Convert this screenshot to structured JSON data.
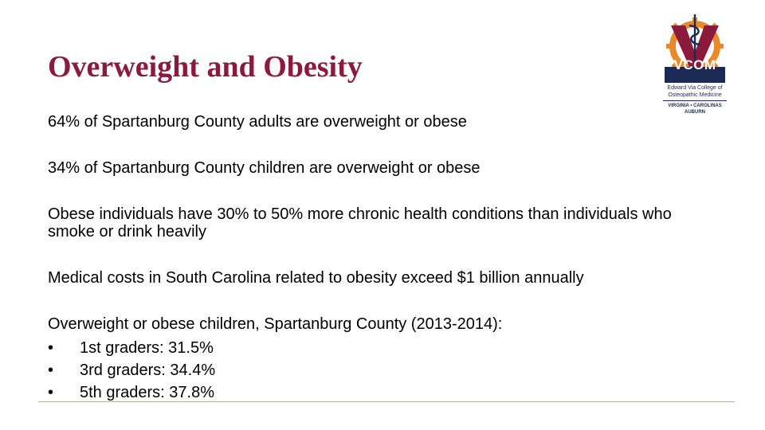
{
  "title": "Overweight and Obesity",
  "paragraphs": [
    "64%  of Spartanburg County adults are overweight or obese",
    "34% of Spartanburg County children are overweight or obese",
    "Obese individuals have 30% to 50% more chronic health conditions than individuals who smoke or drink heavily",
    "Medical costs in South Carolina related to obesity exceed $1 billion annually",
    "Overweight or obese children, Spartanburg County (2013-2014):"
  ],
  "bullet_symbol": "•",
  "bullets": [
    "1st graders:  31.5%",
    "3rd graders:  34.4%",
    "5th  graders:  37.8%"
  ],
  "logo": {
    "acronym": "VCOM",
    "line1": "Edward Via College of",
    "line2": "Osteopathic Medicine",
    "line3": "VIRGINIA • CAROLINAS",
    "line4": "AUBURN",
    "colors": {
      "maroon": "#8b1a3c",
      "orange": "#e8892a",
      "navy": "#1a2a55"
    }
  },
  "colors": {
    "title": "#8b1a3c",
    "rule": "#b9b39b"
  }
}
